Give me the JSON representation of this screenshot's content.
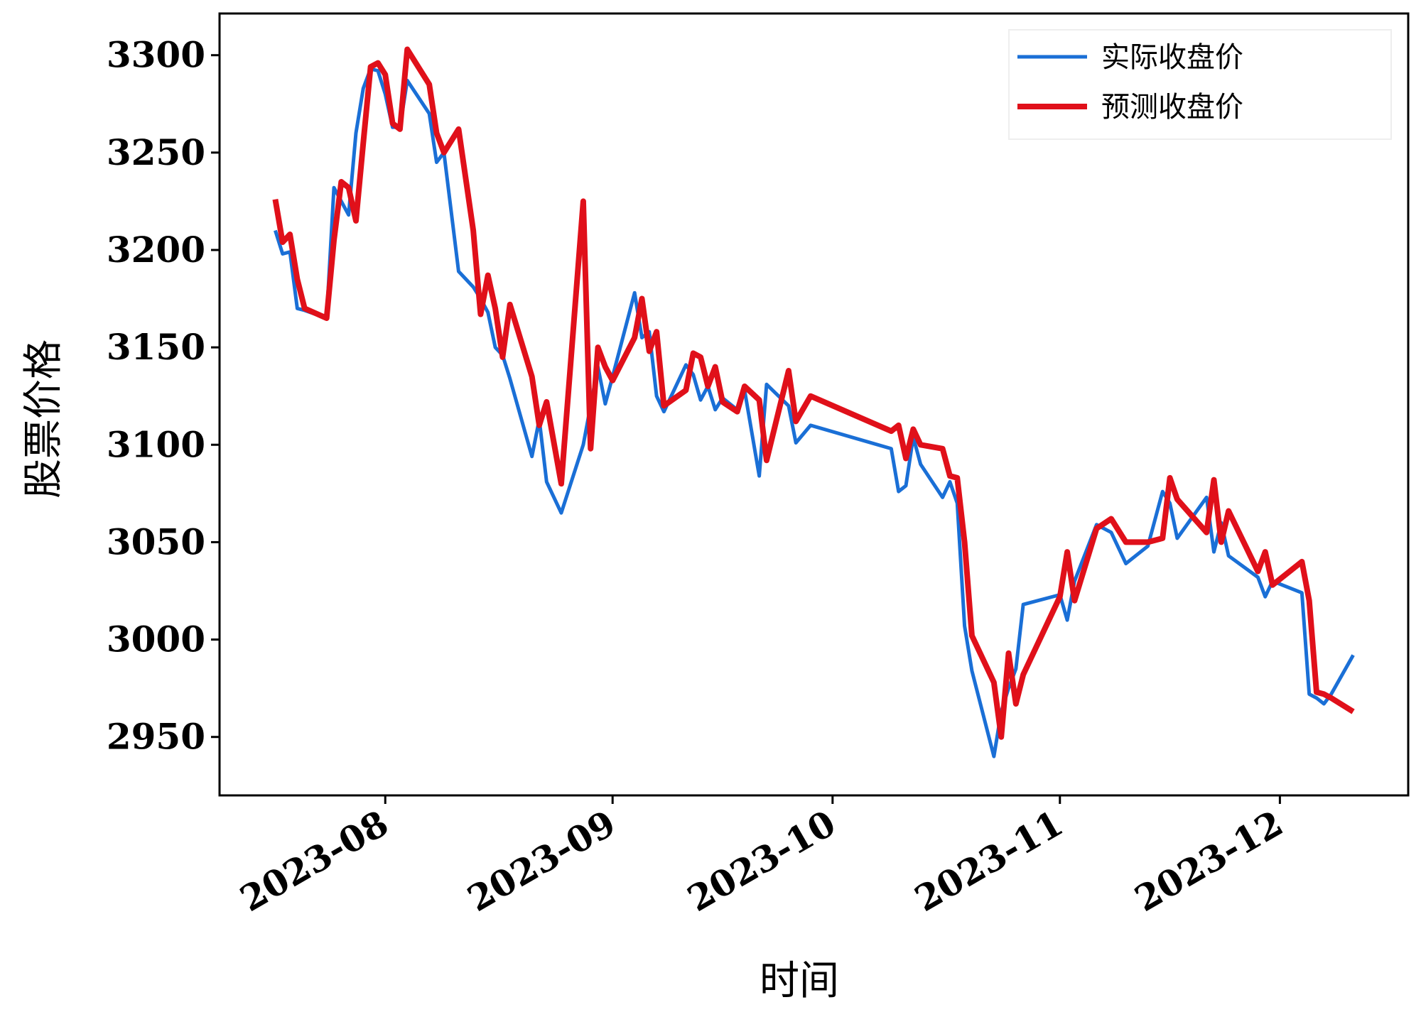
{
  "chart_data": {
    "type": "line",
    "x": [
      -15,
      -14,
      -13,
      -12,
      -11,
      -8,
      -7,
      -6,
      -5,
      -4,
      -3,
      -2,
      -1,
      0,
      1,
      2,
      3,
      6,
      7,
      8,
      10,
      12,
      13,
      14,
      15,
      16,
      17,
      20,
      21,
      22,
      24,
      27,
      28,
      29,
      30,
      31,
      34,
      35,
      36,
      37,
      38,
      41,
      42,
      43,
      44,
      45,
      46,
      48,
      49,
      51,
      52,
      55,
      56,
      58,
      69,
      70,
      71,
      72,
      73,
      76,
      77,
      78,
      79,
      80,
      83,
      84,
      85,
      86,
      87,
      92,
      93,
      94,
      97,
      99,
      101,
      104,
      106,
      107,
      108,
      112,
      113,
      114,
      115,
      119,
      120,
      121,
      125,
      126,
      127,
      128,
      129,
      132
    ],
    "series": [
      {
        "name": "实际收盘价",
        "color": "#1a6fd6",
        "values": [
          3210,
          3198,
          3199,
          3170,
          3169,
          3165,
          3232,
          3225,
          3218,
          3260,
          3283,
          3293,
          3292,
          3280,
          3263,
          3263,
          3287,
          3270,
          3245,
          3250,
          3189,
          3181,
          3175,
          3168,
          3150,
          3146,
          3134,
          3094,
          3113,
          3081,
          3065,
          3100,
          3120,
          3140,
          3121,
          3135,
          3178,
          3155,
          3158,
          3125,
          3117,
          3141,
          3136,
          3123,
          3130,
          3118,
          3124,
          3118,
          3128,
          3084,
          3131,
          3120,
          3101,
          3110,
          3098,
          3076,
          3079,
          3104,
          3090,
          3073,
          3081,
          3070,
          3007,
          2984,
          2940,
          2963,
          2975,
          2985,
          3018,
          3023,
          3010,
          3030,
          3059,
          3055,
          3039,
          3048,
          3076,
          3070,
          3052,
          3073,
          3045,
          3060,
          3043,
          3032,
          3022,
          3030,
          3024,
          2972,
          2970,
          2967,
          2972,
          2992
        ]
      },
      {
        "name": "预测收盘价",
        "color": "#e0101a",
        "values": [
          3226,
          3204,
          3208,
          3185,
          3170,
          3165,
          3205,
          3235,
          3232,
          3215,
          3255,
          3294,
          3296,
          3290,
          3265,
          3262,
          3303,
          3285,
          3260,
          3250,
          3262,
          3210,
          3167,
          3187,
          3170,
          3145,
          3172,
          3135,
          3110,
          3122,
          3080,
          3225,
          3098,
          3150,
          3140,
          3133,
          3155,
          3175,
          3148,
          3158,
          3120,
          3128,
          3147,
          3145,
          3130,
          3140,
          3122,
          3117,
          3130,
          3123,
          3092,
          3138,
          3112,
          3125,
          3107,
          3110,
          3093,
          3108,
          3100,
          3098,
          3084,
          3083,
          3050,
          3002,
          2978,
          2950,
          2993,
          2967,
          2982,
          3022,
          3045,
          3020,
          3057,
          3062,
          3050,
          3050,
          3052,
          3083,
          3072,
          3055,
          3082,
          3050,
          3066,
          3035,
          3045,
          3028,
          3040,
          3020,
          2973,
          2972,
          2970,
          2963
        ]
      }
    ],
    "xlim": [
      -22.6,
      139.5
    ],
    "xticks": [
      {
        "value": 0,
        "label": "2023-08"
      },
      {
        "value": 31,
        "label": "2023-09"
      },
      {
        "value": 61,
        "label": "2023-10"
      },
      {
        "value": 92,
        "label": "2023-11"
      },
      {
        "value": 122,
        "label": "2023-12"
      }
    ],
    "ylim": [
      2920,
      3321.4
    ],
    "yticks": [
      2950,
      3000,
      3050,
      3100,
      3150,
      3200,
      3250,
      3300
    ],
    "xlabel": "时间",
    "ylabel": "股票价格",
    "legend": "upper right"
  }
}
